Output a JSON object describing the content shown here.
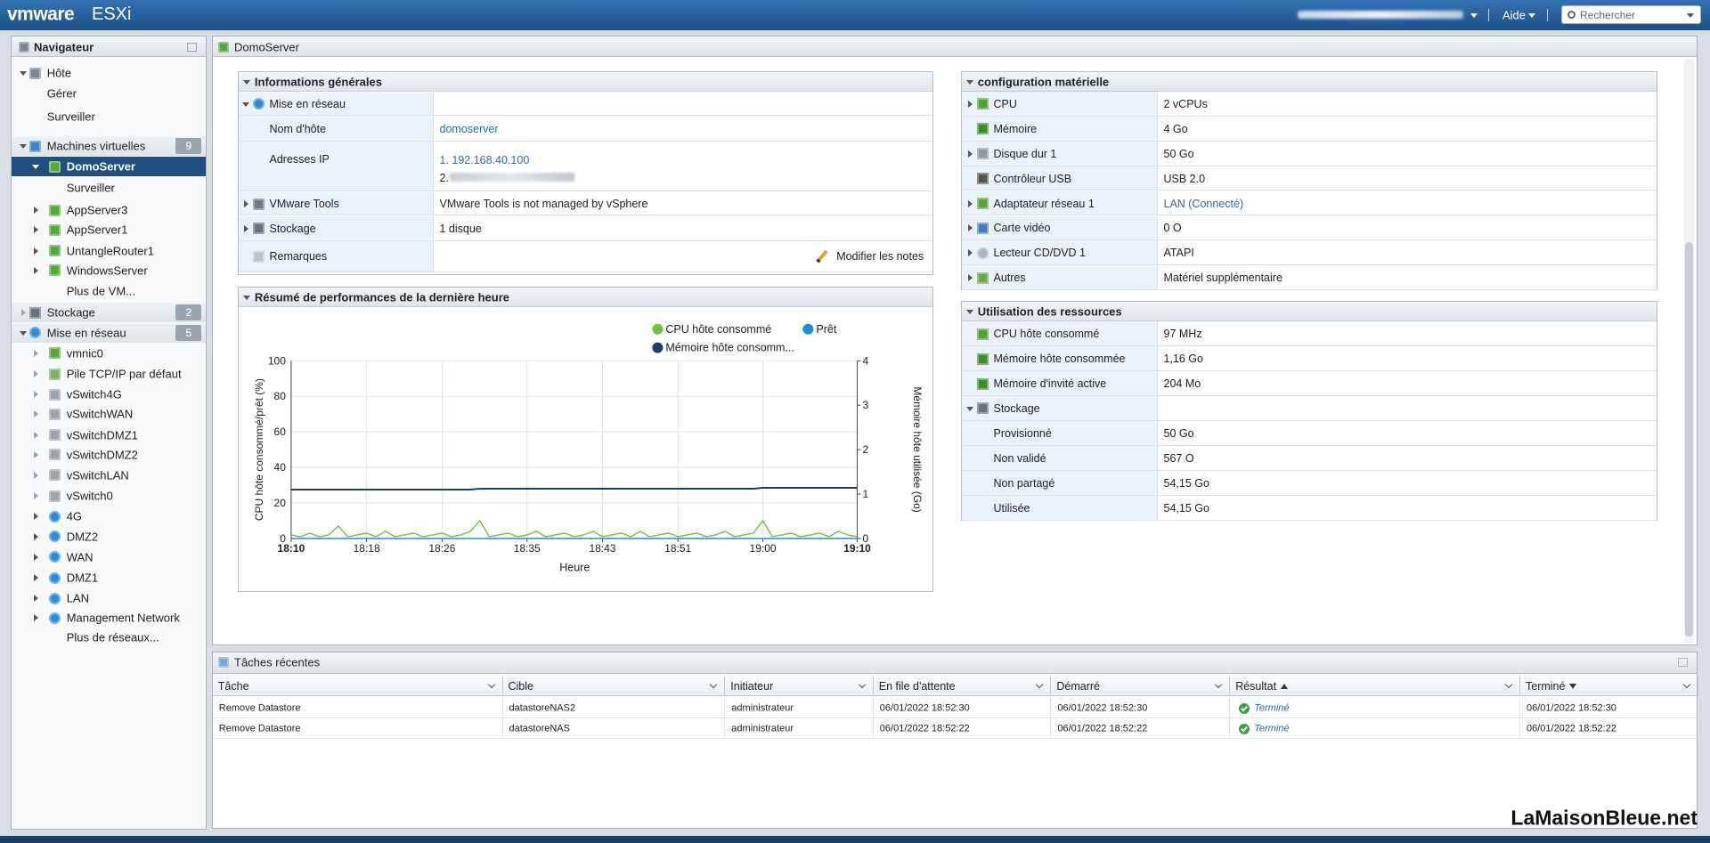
{
  "header": {
    "brand": "vmware",
    "product": "ESXi",
    "help": "Aide",
    "search": "Rechercher"
  },
  "navigator": {
    "title": "Navigateur",
    "items": [
      {
        "label": "Hôte"
      },
      {
        "label": "Gérer"
      },
      {
        "label": "Surveiller"
      },
      {
        "label": "Machines virtuelles",
        "badge": 9
      },
      {
        "label": "DomoServer"
      },
      {
        "label": "Surveiller"
      },
      {
        "label": "AppServer3"
      },
      {
        "label": "AppServer1"
      },
      {
        "label": "UntangleRouter1"
      },
      {
        "label": "WindowsServer"
      },
      {
        "label": "Plus de VM..."
      },
      {
        "label": "Stockage",
        "badge": 2
      },
      {
        "label": "Mise en réseau",
        "badge": 5
      },
      {
        "label": "vmnic0"
      },
      {
        "label": "Pile TCP/IP par défaut"
      },
      {
        "label": "vSwitch4G"
      },
      {
        "label": "vSwitchWAN"
      },
      {
        "label": "vSwitchDMZ1"
      },
      {
        "label": "vSwitchDMZ2"
      },
      {
        "label": "vSwitchLAN"
      },
      {
        "label": "vSwitch0"
      },
      {
        "label": "4G"
      },
      {
        "label": "DMZ2"
      },
      {
        "label": "WAN"
      },
      {
        "label": "DMZ1"
      },
      {
        "label": "LAN"
      },
      {
        "label": "Management Network"
      },
      {
        "label": "Plus de réseaux..."
      }
    ]
  },
  "main": {
    "title": "DomoServer"
  },
  "general": {
    "title": "Informations générales",
    "rows": [
      {
        "label": "Mise en réseau"
      },
      {
        "label": "Nom d'hôte",
        "values": [
          "domoserver"
        ]
      },
      {
        "label": "Adresses IP",
        "values": [
          "1. 192.168.40.100",
          "2."
        ]
      },
      {
        "label": "VMware Tools",
        "values": [
          "VMware Tools is not managed by vSphere"
        ]
      },
      {
        "label": "Stockage",
        "values": [
          "1 disque"
        ]
      },
      {
        "label": "Remarques",
        "values": [
          "Modifier les notes"
        ]
      }
    ]
  },
  "hardware": {
    "title": "configuration matérielle",
    "rows": [
      {
        "label": "CPU",
        "value": "2 vCPUs"
      },
      {
        "label": "Mémoire",
        "value": "4 Go"
      },
      {
        "label": "Disque dur 1",
        "value": "50 Go"
      },
      {
        "label": "Contrôleur USB",
        "value": "USB 2.0"
      },
      {
        "label": "Adaptateur réseau 1",
        "value": "LAN (Connecté)"
      },
      {
        "label": "Carte vidéo",
        "value": "0 O"
      },
      {
        "label": "Lecteur CD/DVD 1",
        "value": "ATAPI"
      },
      {
        "label": "Autres",
        "value": "Matériel supplémentaire"
      }
    ]
  },
  "resources": {
    "title": "Utilisation des ressources",
    "rows": [
      {
        "label": "CPU hôte consommé",
        "value": "97 MHz"
      },
      {
        "label": "Mémoire hôte consommée",
        "value": "1,16 Go"
      },
      {
        "label": "Mémoire d'invité active",
        "value": "204 Mo"
      },
      {
        "label": "Stockage"
      },
      {
        "label": "Provisionné",
        "value": "50 Go"
      },
      {
        "label": "Non validé",
        "value": "567 O"
      },
      {
        "label": "Non partagé",
        "value": "54,15 Go"
      },
      {
        "label": "Utilisée",
        "value": "54,15 Go"
      }
    ]
  },
  "performance": {
    "title": "Résumé de performances de la dernière heure",
    "chart_data": {
      "type": "line",
      "ylabel": "CPU hôte consommé/prêt (%)",
      "y2label": "Mémoire hôte utilisée (Go)",
      "xlabel": "Heure",
      "xlim": [
        1090,
        1150
      ],
      "xticks": [
        {
          "value": 1090,
          "label": "18:10"
        },
        {
          "value": 1098,
          "label": "18:18"
        },
        {
          "value": 1106,
          "label": "18:26"
        },
        {
          "value": 1115,
          "label": "18:35"
        },
        {
          "value": 1123,
          "label": "18:43"
        },
        {
          "value": 1131,
          "label": "18:51"
        },
        {
          "value": 1140,
          "label": "19:00"
        },
        {
          "value": 1150,
          "label": "19:10"
        }
      ],
      "ylim": [
        0,
        100
      ],
      "yticks": [
        0,
        20,
        40,
        60,
        80,
        100
      ],
      "y2lim": [
        0,
        4
      ],
      "y2ticks": [
        0,
        1,
        2,
        3,
        4
      ],
      "grid": true,
      "x": [
        1090,
        1091,
        1092,
        1093,
        1094,
        1095,
        1096,
        1097,
        1098,
        1099,
        1100,
        1101,
        1102,
        1103,
        1104,
        1105,
        1106,
        1107,
        1108,
        1109,
        1110,
        1111,
        1112,
        1113,
        1114,
        1115,
        1116,
        1117,
        1118,
        1119,
        1120,
        1121,
        1122,
        1123,
        1124,
        1125,
        1126,
        1127,
        1128,
        1129,
        1130,
        1131,
        1132,
        1133,
        1134,
        1135,
        1136,
        1137,
        1138,
        1139,
        1140,
        1141,
        1142,
        1143,
        1144,
        1145,
        1146,
        1147,
        1148,
        1149,
        1150
      ],
      "series": [
        {
          "name": "CPU hôte consommé",
          "color": "#70c043",
          "values": [
            2,
            1,
            3,
            1,
            2,
            7,
            1,
            2,
            3,
            1,
            4,
            1,
            2,
            3,
            1,
            2,
            3,
            1,
            2,
            4,
            10,
            1,
            2,
            3,
            1,
            2,
            4,
            1,
            2,
            3,
            1,
            2,
            4,
            1,
            2,
            3,
            1,
            4,
            1,
            2,
            3,
            1,
            2,
            3,
            1,
            2,
            4,
            1,
            2,
            3,
            10,
            1,
            2,
            3,
            1,
            2,
            3,
            1,
            4,
            2,
            1
          ]
        },
        {
          "name": "Prêt",
          "color": "#1b8fd1",
          "values": [
            0,
            0,
            0,
            0,
            0,
            0,
            0,
            0,
            0,
            0,
            0,
            0,
            0,
            0,
            0,
            0,
            0,
            0,
            0,
            0,
            0,
            0,
            0,
            0,
            0,
            0,
            0,
            0,
            0,
            0,
            0,
            0,
            0,
            0,
            0,
            0,
            0,
            0,
            0,
            0,
            0,
            0,
            0,
            0,
            0,
            0,
            0,
            0,
            0,
            0,
            0,
            0,
            0,
            0,
            0,
            0,
            0,
            0,
            0,
            0,
            0
          ]
        },
        {
          "name": "Mémoire hôte consomm...",
          "color": "#1d3f6e",
          "axis": "y2",
          "values": [
            1.1,
            1.1,
            1.1,
            1.1,
            1.1,
            1.1,
            1.1,
            1.1,
            1.1,
            1.1,
            1.1,
            1.1,
            1.1,
            1.1,
            1.1,
            1.1,
            1.1,
            1.1,
            1.1,
            1.1,
            1.12,
            1.12,
            1.12,
            1.12,
            1.12,
            1.12,
            1.12,
            1.12,
            1.12,
            1.12,
            1.12,
            1.12,
            1.12,
            1.12,
            1.12,
            1.12,
            1.12,
            1.12,
            1.12,
            1.12,
            1.12,
            1.12,
            1.12,
            1.12,
            1.12,
            1.12,
            1.12,
            1.12,
            1.12,
            1.12,
            1.14,
            1.14,
            1.14,
            1.14,
            1.14,
            1.14,
            1.14,
            1.14,
            1.14,
            1.14,
            1.14
          ]
        }
      ]
    }
  },
  "tasks": {
    "title": "Tâches récentes",
    "columns": [
      "Tâche",
      "Cible",
      "Initiateur",
      "En file d'attente",
      "Démarré",
      "Résultat",
      "Terminé"
    ],
    "rows": [
      [
        "Remove Datastore",
        "datastoreNAS2",
        "administrateur",
        "06/01/2022 18:52:30",
        "06/01/2022 18:52:30",
        "Terminé",
        "06/01/2022 18:52:30"
      ],
      [
        "Remove Datastore",
        "datastoreNAS",
        "administrateur",
        "06/01/2022 18:52:22",
        "06/01/2022 18:52:22",
        "Terminé",
        "06/01/2022 18:52:22"
      ]
    ]
  },
  "watermark": "LaMaisonBleue.net"
}
